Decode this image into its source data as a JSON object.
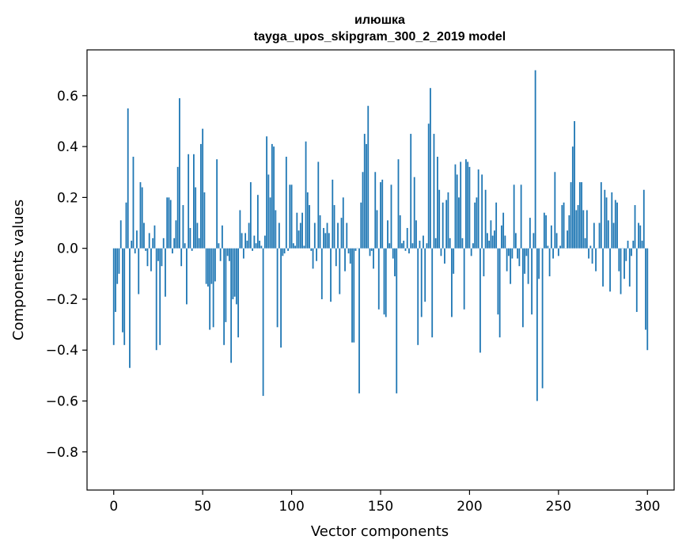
{
  "chart_data": {
    "type": "bar",
    "title": "илюшка",
    "subtitle": "tayga_upos_skipgram_300_2_2019 model",
    "xlabel": "Vector components",
    "ylabel": "Components values",
    "xlim": [
      -15,
      315
    ],
    "ylim": [
      -0.95,
      0.78
    ],
    "xticks": [
      0,
      50,
      100,
      150,
      200,
      250,
      300
    ],
    "yticks": [
      -0.8,
      -0.6,
      -0.4,
      -0.2,
      0.0,
      0.2,
      0.4,
      0.6
    ],
    "ytick_labels": [
      "−0.8",
      "−0.6",
      "−0.4",
      "−0.2",
      "0.0",
      "0.2",
      "0.4",
      "0.6"
    ],
    "bar_color": "#1f77b4",
    "grid": false,
    "values": [
      -0.38,
      -0.25,
      -0.14,
      -0.1,
      0.11,
      -0.33,
      -0.38,
      0.18,
      0.55,
      -0.47,
      0.03,
      0.36,
      -0.02,
      0.07,
      -0.18,
      0.26,
      0.24,
      0.1,
      -0.01,
      -0.07,
      0.06,
      -0.09,
      0.04,
      0.09,
      -0.4,
      -0.05,
      -0.38,
      -0.07,
      0.04,
      -0.19,
      0.2,
      0.2,
      0.19,
      -0.02,
      0.04,
      0.11,
      0.32,
      0.59,
      -0.07,
      0.17,
      0.02,
      -0.22,
      0.37,
      0.08,
      -0.01,
      0.37,
      0.24,
      0.1,
      0.04,
      0.41,
      0.47,
      0.22,
      -0.14,
      -0.15,
      -0.32,
      -0.14,
      -0.31,
      -0.13,
      0.35,
      0.02,
      -0.05,
      0.09,
      -0.38,
      -0.29,
      -0.03,
      -0.05,
      -0.45,
      -0.2,
      -0.19,
      -0.22,
      -0.35,
      0.15,
      0.06,
      -0.04,
      0.06,
      0.03,
      0.1,
      0.26,
      -0.01,
      0.05,
      0.02,
      0.21,
      0.03,
      0.01,
      -0.58,
      0.05,
      0.44,
      0.29,
      0.2,
      0.41,
      0.4,
      0.15,
      -0.31,
      0.1,
      -0.39,
      -0.03,
      -0.02,
      0.36,
      -0.01,
      0.25,
      0.25,
      0.02,
      0.01,
      0.14,
      0.07,
      0.1,
      0.14,
      0.01,
      0.42,
      0.22,
      0.17,
      -0.01,
      -0.08,
      0.1,
      -0.05,
      0.34,
      0.13,
      -0.2,
      0.08,
      0.06,
      0.1,
      0.06,
      -0.21,
      0.27,
      0.17,
      -0.07,
      0.1,
      -0.18,
      0.12,
      0.2,
      -0.09,
      0.1,
      -0.02,
      -0.06,
      -0.37,
      -0.37,
      -0.01,
      0.0,
      -0.57,
      0.18,
      0.3,
      0.45,
      0.41,
      0.56,
      -0.03,
      -0.01,
      -0.08,
      0.3,
      0.15,
      -0.24,
      0.26,
      0.27,
      -0.26,
      -0.27,
      0.11,
      0.02,
      0.25,
      -0.04,
      -0.11,
      -0.57,
      0.35,
      0.13,
      0.02,
      0.03,
      -0.01,
      0.08,
      -0.02,
      0.45,
      0.02,
      0.28,
      0.11,
      -0.38,
      0.03,
      -0.27,
      0.05,
      -0.21,
      0.02,
      0.49,
      0.63,
      -0.35,
      0.45,
      0.04,
      0.36,
      0.23,
      -0.03,
      0.18,
      -0.06,
      0.19,
      0.22,
      0.04,
      -0.27,
      -0.1,
      0.33,
      0.29,
      0.2,
      0.34,
      0.04,
      -0.24,
      0.35,
      0.34,
      0.32,
      -0.03,
      0.02,
      0.18,
      0.2,
      0.31,
      -0.41,
      0.29,
      -0.11,
      0.23,
      0.06,
      0.03,
      0.11,
      0.05,
      0.07,
      0.18,
      -0.26,
      -0.35,
      0.09,
      0.14,
      0.05,
      -0.09,
      -0.03,
      -0.14,
      -0.04,
      0.25,
      0.06,
      -0.04,
      -0.07,
      0.25,
      -0.31,
      -0.1,
      -0.03,
      -0.14,
      0.12,
      -0.26,
      0.06,
      0.7,
      -0.6,
      -0.12,
      0.0,
      -0.55,
      0.14,
      0.13,
      0.01,
      -0.11,
      0.09,
      -0.04,
      0.3,
      0.06,
      -0.03,
      0.01,
      0.17,
      0.18,
      0.0,
      0.07,
      0.13,
      0.26,
      0.4,
      0.5,
      0.15,
      0.17,
      0.26,
      0.26,
      0.15,
      0.04,
      0.15,
      -0.04,
      0.01,
      -0.06,
      0.1,
      -0.09,
      0.0,
      0.1,
      0.26,
      -0.15,
      0.23,
      0.2,
      0.11,
      -0.17,
      0.22,
      0.1,
      0.19,
      0.18,
      -0.09,
      -0.18,
      0.0,
      -0.12,
      -0.05,
      0.03,
      -0.15,
      -0.03,
      0.03,
      0.17,
      -0.25,
      0.1,
      0.09,
      0.03,
      0.23,
      -0.32,
      -0.4
    ]
  }
}
